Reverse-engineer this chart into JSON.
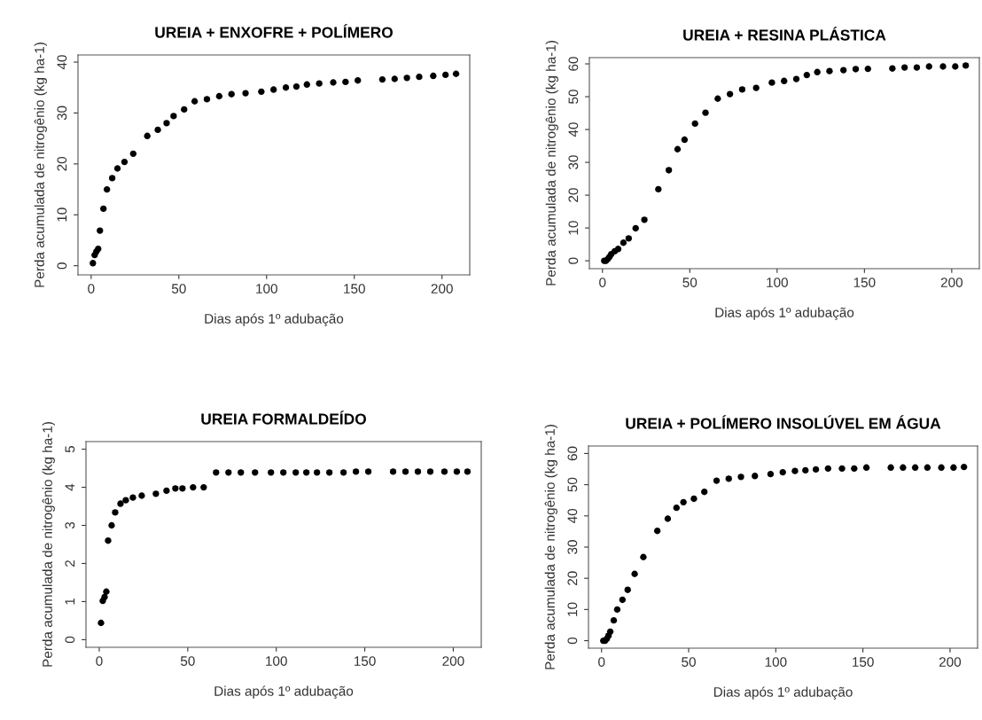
{
  "chart_data": [
    {
      "type": "scatter",
      "title": "UREIA + ENXOFRE + POLÍMERO",
      "xlabel": "Dias após 1º adubação",
      "ylabel": "Perda acumulada de nitrogênio (kg ha-1)",
      "marker": "circle",
      "xlim": [
        -7.5,
        215.8
      ],
      "ylim": [
        -1.8,
        41.4
      ],
      "xticks": [
        0,
        50,
        100,
        150,
        200
      ],
      "yticks": [
        0,
        10,
        20,
        30,
        40
      ],
      "x": [
        1,
        2,
        3,
        4,
        5,
        7,
        9,
        12,
        15,
        19,
        24,
        32,
        38,
        43,
        47,
        53,
        59,
        66,
        73,
        80,
        88,
        97,
        104,
        111,
        117,
        123,
        130,
        138,
        145,
        152,
        166,
        173,
        180,
        187,
        195,
        202,
        208
      ],
      "series": [
        {
          "color": "#000000",
          "values": [
            0.5,
            2.1,
            2.8,
            3.3,
            6.9,
            11.2,
            15.0,
            17.2,
            19.1,
            20.4,
            22.0,
            25.5,
            26.7,
            28.0,
            29.4,
            30.7,
            32.3,
            32.7,
            33.3,
            33.7,
            33.9,
            34.2,
            34.6,
            35.0,
            35.2,
            35.6,
            35.8,
            36.0,
            36.1,
            36.4,
            36.6,
            36.7,
            36.9,
            37.1,
            37.3,
            37.5,
            37.7
          ]
        }
      ]
    },
    {
      "type": "scatter",
      "title": "UREIA + RESINA PLÁSTICA",
      "xlabel": "Dias após 1º adubação",
      "ylabel": "Perda acumulada de nitrogênio (kg ha-1)",
      "marker": "circle",
      "xlim": [
        -7.5,
        215.8
      ],
      "ylim": [
        -2.4,
        61.9
      ],
      "xticks": [
        0,
        50,
        100,
        150,
        200
      ],
      "yticks": [
        0,
        10,
        20,
        30,
        40,
        50,
        60
      ],
      "x": [
        1,
        2,
        3,
        4,
        5,
        7,
        9,
        12,
        15,
        19,
        24,
        32,
        38,
        43,
        47,
        53,
        59,
        66,
        73,
        80,
        88,
        97,
        104,
        111,
        117,
        123,
        130,
        138,
        145,
        152,
        166,
        173,
        180,
        187,
        195,
        202,
        208
      ],
      "series": [
        {
          "color": "#000000",
          "values": [
            0,
            0,
            0.5,
            1.2,
            2.0,
            2.9,
            3.6,
            5.5,
            6.8,
            9.9,
            12.5,
            21.8,
            27.6,
            34.0,
            36.9,
            41.8,
            45.1,
            49.4,
            50.8,
            52.2,
            52.7,
            54.3,
            54.8,
            55.4,
            56.6,
            57.5,
            57.8,
            58.1,
            58.4,
            58.5,
            58.6,
            58.9,
            58.9,
            59.2,
            59.2,
            59.2,
            59.5
          ]
        }
      ]
    },
    {
      "type": "scatter",
      "title": "UREIA FORMALDEÍDO",
      "xlabel": "Dias após 1º adubação",
      "ylabel": "Perda acumulada de nitrogênio (kg ha-1)",
      "marker": "circle",
      "xlim": [
        -7.5,
        215.8
      ],
      "ylim": [
        -0.2,
        5.2
      ],
      "xticks": [
        0,
        50,
        100,
        150,
        200
      ],
      "yticks": [
        0,
        1,
        2,
        3,
        4,
        5
      ],
      "x": [
        1,
        2,
        3,
        4,
        5,
        7,
        9,
        12,
        15,
        19,
        24,
        32,
        38,
        43,
        47,
        53,
        59,
        66,
        73,
        80,
        88,
        97,
        104,
        111,
        117,
        123,
        130,
        138,
        145,
        152,
        166,
        173,
        180,
        187,
        195,
        202,
        208
      ],
      "series": [
        {
          "color": "#000000",
          "values": [
            0.44,
            1.02,
            1.12,
            1.26,
            2.6,
            3.0,
            3.34,
            3.57,
            3.66,
            3.73,
            3.78,
            3.83,
            3.91,
            3.97,
            3.97,
            4.0,
            4.0,
            4.39,
            4.39,
            4.39,
            4.39,
            4.39,
            4.39,
            4.39,
            4.39,
            4.39,
            4.39,
            4.39,
            4.41,
            4.41,
            4.41,
            4.41,
            4.41,
            4.41,
            4.41,
            4.41,
            4.41
          ]
        }
      ]
    },
    {
      "type": "scatter",
      "title": "UREIA + POLÍMERO INSOLÚVEL EM ÁGUA",
      "xlabel": "Dias após 1º adubação",
      "ylabel": "Perda acumulada de nitrogênio (kg ha-1)",
      "marker": "circle",
      "xlim": [
        -7.5,
        215.8
      ],
      "ylim": [
        -2.4,
        62.4
      ],
      "xticks": [
        0,
        50,
        100,
        150,
        200
      ],
      "yticks": [
        0,
        10,
        20,
        30,
        40,
        50,
        60
      ],
      "x": [
        1,
        2,
        3,
        4,
        5,
        7,
        9,
        12,
        15,
        19,
        24,
        32,
        38,
        43,
        47,
        53,
        59,
        66,
        73,
        80,
        88,
        97,
        104,
        111,
        117,
        123,
        130,
        138,
        145,
        152,
        166,
        173,
        180,
        187,
        195,
        202,
        208
      ],
      "series": [
        {
          "color": "#000000",
          "values": [
            0,
            0,
            0.6,
            1.6,
            2.9,
            6.5,
            10.0,
            13.1,
            16.3,
            21.4,
            26.8,
            35.2,
            39.1,
            42.6,
            44.4,
            45.5,
            47.7,
            51.3,
            51.9,
            52.5,
            52.8,
            53.4,
            54.0,
            54.4,
            54.6,
            54.9,
            55.2,
            55.2,
            55.2,
            55.5,
            55.5,
            55.5,
            55.5,
            55.5,
            55.5,
            55.5,
            55.7
          ]
        }
      ]
    }
  ]
}
